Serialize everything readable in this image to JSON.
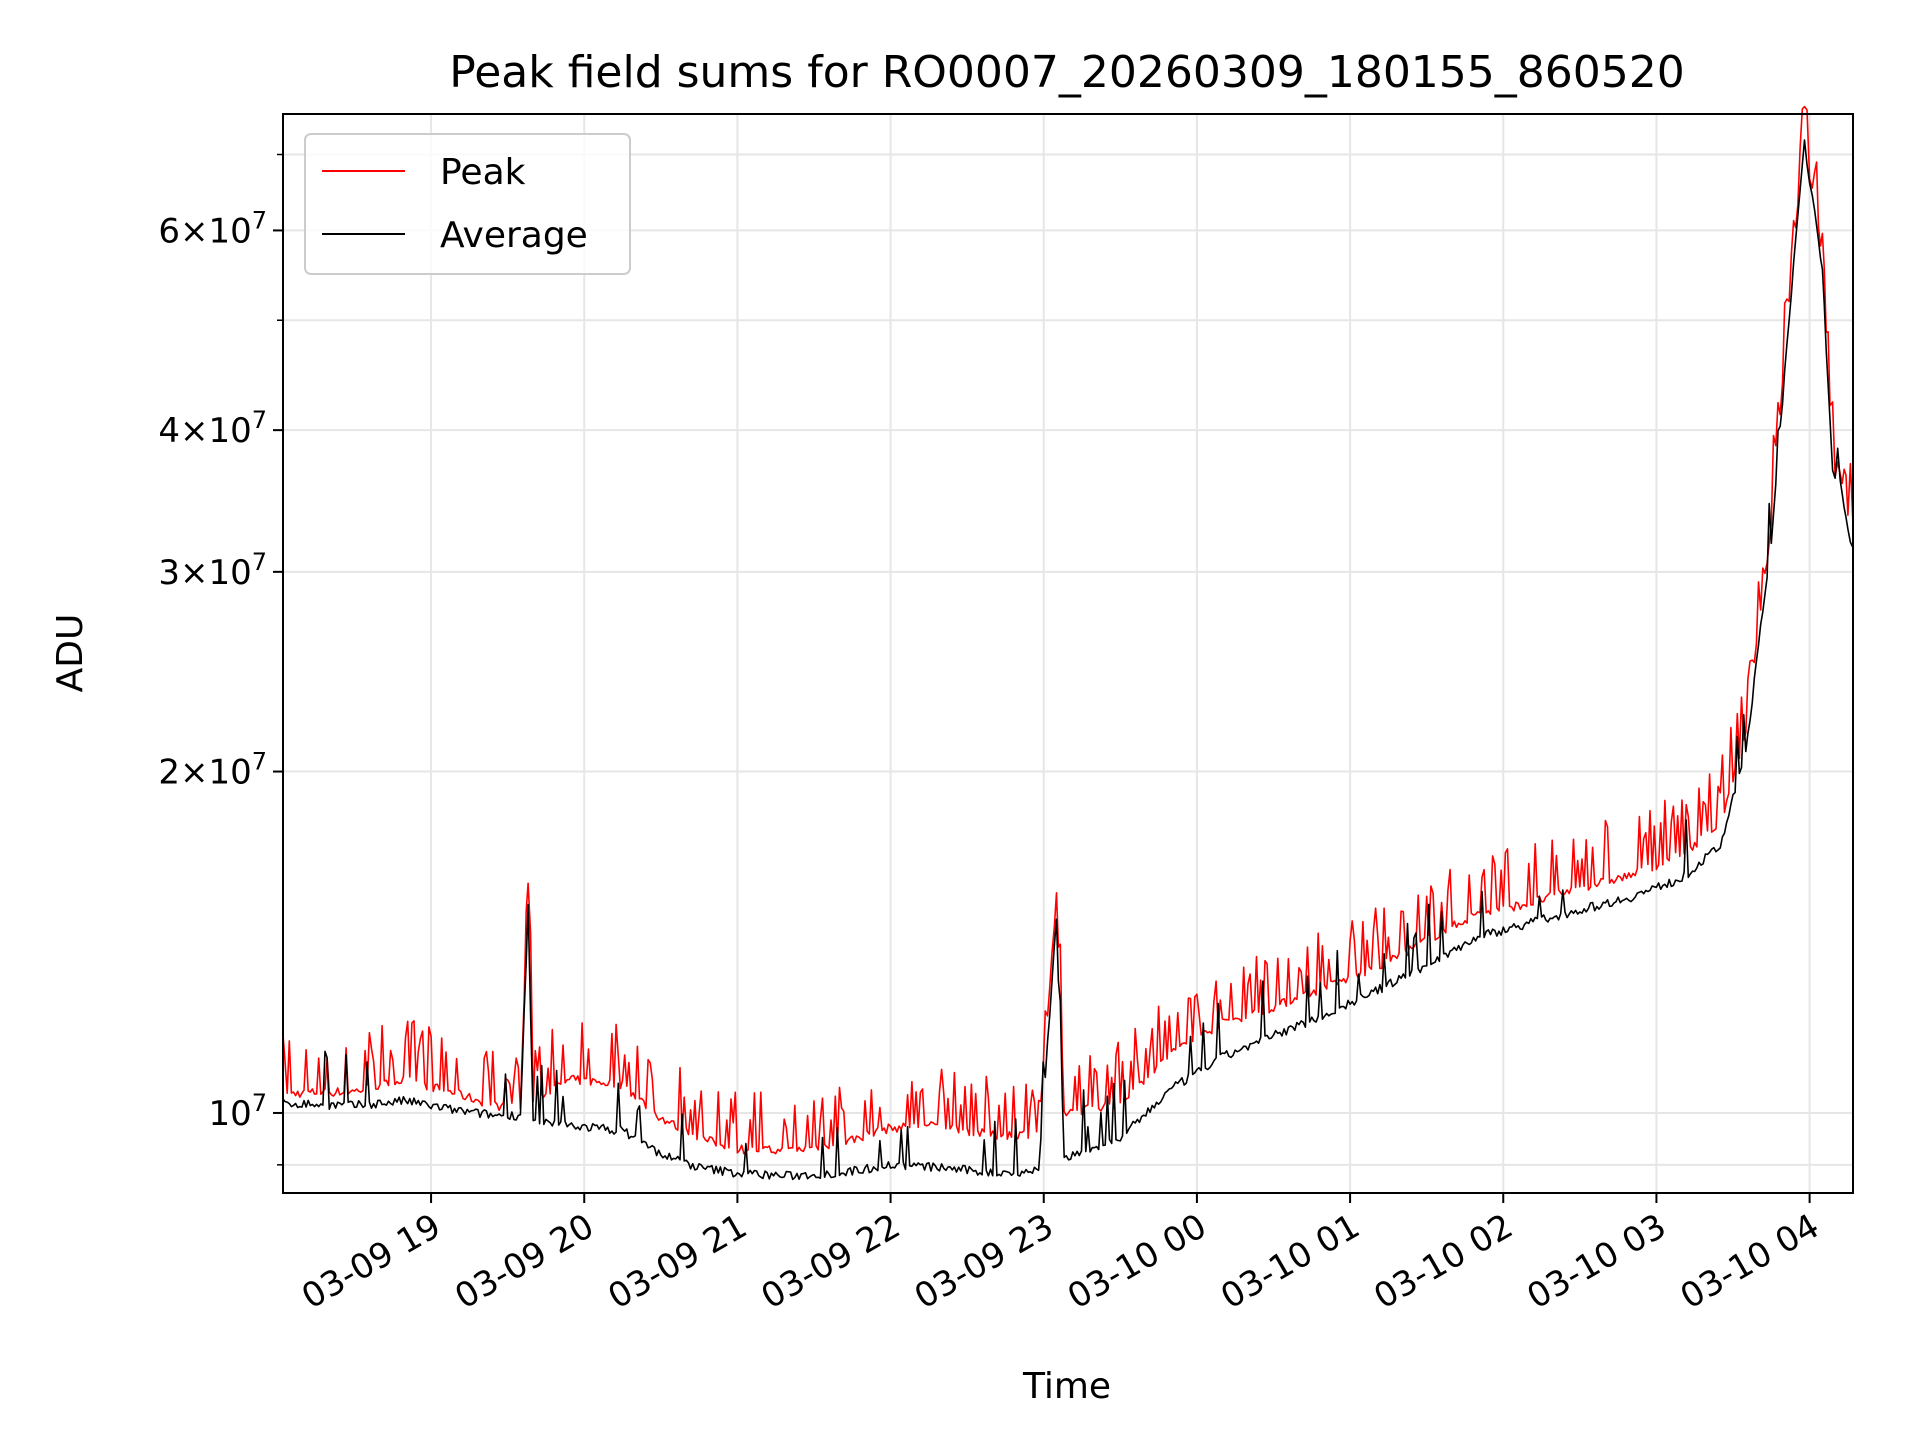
{
  "chart_data": {
    "type": "line",
    "title": "Peak field sums for RO0007_20260309_180155_860520",
    "xlabel": "Time",
    "ylabel": "ADU",
    "y_scale": "log",
    "grid": true,
    "legend_position": "top-left",
    "xlim": [
      "2026-03-09 18:02",
      "2026-03-10 04:17"
    ],
    "ylim": [
      8500000,
      76000000
    ],
    "x_ticks": [
      {
        "value": "2026-03-09 19:00",
        "label": "03-09 19"
      },
      {
        "value": "2026-03-09 20:00",
        "label": "03-09 20"
      },
      {
        "value": "2026-03-09 21:00",
        "label": "03-09 21"
      },
      {
        "value": "2026-03-09 22:00",
        "label": "03-09 22"
      },
      {
        "value": "2026-03-09 23:00",
        "label": "03-09 23"
      },
      {
        "value": "2026-03-10 00:00",
        "label": "03-10 00"
      },
      {
        "value": "2026-03-10 01:00",
        "label": "03-10 01"
      },
      {
        "value": "2026-03-10 02:00",
        "label": "03-10 02"
      },
      {
        "value": "2026-03-10 03:00",
        "label": "03-10 03"
      },
      {
        "value": "2026-03-10 04:00",
        "label": "03-10 04"
      }
    ],
    "y_ticks": [
      {
        "value": 10000000,
        "label": "10",
        "exp": "7"
      },
      {
        "value": 20000000,
        "label": "2×10",
        "exp": "7"
      },
      {
        "value": 30000000,
        "label": "3×10",
        "exp": "7"
      },
      {
        "value": 40000000,
        "label": "4×10",
        "exp": "7"
      },
      {
        "value": 60000000,
        "label": "6×10",
        "exp": "7"
      }
    ],
    "y_minor_ticks": [
      9000000,
      50000000,
      70000000
    ],
    "series": [
      {
        "name": "Peak",
        "color": "#ff0000",
        "points": [
          [
            "2026-03-09 18:02",
            10400000
          ],
          [
            "2026-03-09 18:30",
            10450000
          ],
          [
            "2026-03-09 18:50",
            10700000
          ],
          [
            "2026-03-09 19:10",
            10400000
          ],
          [
            "2026-03-09 19:25",
            10150000
          ],
          [
            "2026-03-09 19:35",
            10100000
          ],
          [
            "2026-03-09 19:38",
            15800000
          ],
          [
            "2026-03-09 19:40",
            10300000
          ],
          [
            "2026-03-09 19:55",
            10700000
          ],
          [
            "2026-03-09 20:15",
            10600000
          ],
          [
            "2026-03-09 20:30",
            9900000
          ],
          [
            "2026-03-09 20:45",
            9500000
          ],
          [
            "2026-03-09 21:00",
            9300000
          ],
          [
            "2026-03-09 21:20",
            9250000
          ],
          [
            "2026-03-09 21:40",
            9400000
          ],
          [
            "2026-03-09 22:00",
            9700000
          ],
          [
            "2026-03-09 22:20",
            9750000
          ],
          [
            "2026-03-09 22:40",
            9550000
          ],
          [
            "2026-03-09 22:58",
            9600000
          ],
          [
            "2026-03-09 23:05",
            15500000
          ],
          [
            "2026-03-09 23:08",
            10000000
          ],
          [
            "2026-03-09 23:30",
            10200000
          ],
          [
            "2026-03-09 23:50",
            11300000
          ],
          [
            "2026-03-10 00:10",
            12000000
          ],
          [
            "2026-03-10 00:30",
            12400000
          ],
          [
            "2026-03-10 00:50",
            12900000
          ],
          [
            "2026-03-10 01:10",
            13400000
          ],
          [
            "2026-03-10 01:30",
            14200000
          ],
          [
            "2026-03-10 01:50",
            15000000
          ],
          [
            "2026-03-10 02:10",
            15300000
          ],
          [
            "2026-03-10 02:30",
            15800000
          ],
          [
            "2026-03-10 02:50",
            16200000
          ],
          [
            "2026-03-10 03:10",
            16900000
          ],
          [
            "2026-03-10 03:25",
            18000000
          ],
          [
            "2026-03-10 03:35",
            21500000
          ],
          [
            "2026-03-10 03:45",
            33000000
          ],
          [
            "2026-03-10 03:52",
            52000000
          ],
          [
            "2026-03-10 03:58",
            73000000
          ],
          [
            "2026-03-10 04:00",
            67000000
          ],
          [
            "2026-03-10 04:02",
            64000000
          ],
          [
            "2026-03-10 04:05",
            56000000
          ],
          [
            "2026-03-10 04:08",
            42000000
          ],
          [
            "2026-03-10 04:10",
            34000000
          ],
          [
            "2026-03-10 04:12",
            36500000
          ],
          [
            "2026-03-10 04:15",
            33500000
          ],
          [
            "2026-03-10 04:17",
            33000000
          ]
        ]
      },
      {
        "name": "Average",
        "color": "#000000",
        "points": [
          [
            "2026-03-09 18:02",
            10200000
          ],
          [
            "2026-03-09 18:30",
            10150000
          ],
          [
            "2026-03-09 18:50",
            10250000
          ],
          [
            "2026-03-09 19:10",
            10050000
          ],
          [
            "2026-03-09 19:25",
            9950000
          ],
          [
            "2026-03-09 19:35",
            9950000
          ],
          [
            "2026-03-09 19:38",
            15200000
          ],
          [
            "2026-03-09 19:40",
            9800000
          ],
          [
            "2026-03-09 19:55",
            9750000
          ],
          [
            "2026-03-09 20:15",
            9650000
          ],
          [
            "2026-03-09 20:30",
            9200000
          ],
          [
            "2026-03-09 20:45",
            8950000
          ],
          [
            "2026-03-09 21:00",
            8850000
          ],
          [
            "2026-03-09 21:20",
            8800000
          ],
          [
            "2026-03-09 21:40",
            8850000
          ],
          [
            "2026-03-09 22:00",
            9000000
          ],
          [
            "2026-03-09 22:20",
            8950000
          ],
          [
            "2026-03-09 22:40",
            8850000
          ],
          [
            "2026-03-09 22:58",
            8900000
          ],
          [
            "2026-03-09 23:05",
            14900000
          ],
          [
            "2026-03-09 23:08",
            9100000
          ],
          [
            "2026-03-09 23:30",
            9500000
          ],
          [
            "2026-03-09 23:50",
            10500000
          ],
          [
            "2026-03-10 00:10",
            11200000
          ],
          [
            "2026-03-10 00:30",
            11700000
          ],
          [
            "2026-03-10 00:50",
            12200000
          ],
          [
            "2026-03-10 01:10",
            12800000
          ],
          [
            "2026-03-10 01:30",
            13500000
          ],
          [
            "2026-03-10 01:50",
            14300000
          ],
          [
            "2026-03-10 02:10",
            14700000
          ],
          [
            "2026-03-10 02:30",
            15100000
          ],
          [
            "2026-03-10 02:50",
            15500000
          ],
          [
            "2026-03-10 03:10",
            16100000
          ],
          [
            "2026-03-10 03:25",
            17200000
          ],
          [
            "2026-03-10 03:35",
            20800000
          ],
          [
            "2026-03-10 03:45",
            32000000
          ],
          [
            "2026-03-10 03:52",
            50500000
          ],
          [
            "2026-03-10 03:58",
            71500000
          ],
          [
            "2026-03-10 04:00",
            65500000
          ],
          [
            "2026-03-10 04:02",
            63000000
          ],
          [
            "2026-03-10 04:05",
            55000000
          ],
          [
            "2026-03-10 04:08",
            41000000
          ],
          [
            "2026-03-10 04:10",
            33000000
          ],
          [
            "2026-03-10 04:12",
            35800000
          ],
          [
            "2026-03-10 04:15",
            32800000
          ],
          [
            "2026-03-10 04:17",
            31500000
          ]
        ]
      }
    ]
  }
}
